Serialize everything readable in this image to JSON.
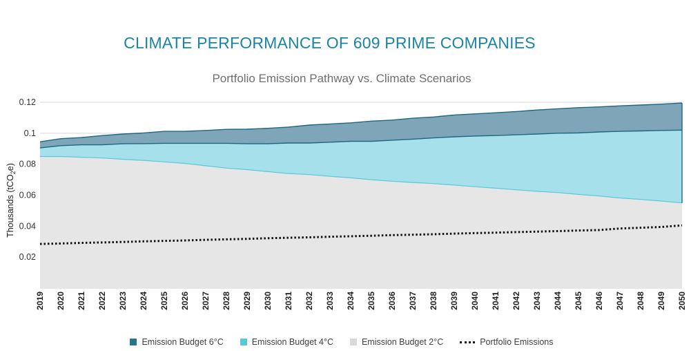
{
  "title": "CLIMATE PERFORMANCE OF 609 PRIME COMPANIES",
  "chart_data": {
    "type": "area",
    "title": "Portfolio Emission Pathway vs. Climate Scenarios",
    "xlabel": "",
    "ylabel": "Thousands (tCO2e)",
    "ylabel_parts": {
      "pre": "Thousands (tCO",
      "sub": "2",
      "post": "e)"
    },
    "ylim": [
      0,
      0.12
    ],
    "yticks": [
      0.02,
      0.04,
      0.06,
      0.08,
      0.1,
      0.12
    ],
    "ytick_labels": [
      "0.02",
      "0.04",
      "0.06",
      "0.08",
      "0.1",
      "0.12"
    ],
    "grid": true,
    "legend_position": "bottom",
    "categories": [
      "2019",
      "2020",
      "2021",
      "2022",
      "2023",
      "2024",
      "2025",
      "2026",
      "2027",
      "2028",
      "2029",
      "2030",
      "2031",
      "2032",
      "2033",
      "2034",
      "2035",
      "2036",
      "2037",
      "2038",
      "2039",
      "2040",
      "2041",
      "2042",
      "2043",
      "2044",
      "2045",
      "2046",
      "2047",
      "2048",
      "2049",
      "2050"
    ],
    "series": [
      {
        "name": "Emission Budget 6°C",
        "type": "area",
        "color": "#2a7391",
        "values": [
          0.0945,
          0.0965,
          0.0972,
          0.0985,
          0.0995,
          0.1002,
          0.1012,
          0.1012,
          0.1018,
          0.1025,
          0.1026,
          0.1032,
          0.104,
          0.1053,
          0.106,
          0.1067,
          0.1078,
          0.1085,
          0.1097,
          0.1105,
          0.1118,
          0.1125,
          0.1132,
          0.114,
          0.115,
          0.1158,
          0.1165,
          0.117,
          0.1177,
          0.1182,
          0.1188,
          0.1195
        ]
      },
      {
        "name": "Emission Budget 4°C",
        "type": "area",
        "color": "#5bc7db",
        "values": [
          0.0905,
          0.092,
          0.0925,
          0.0925,
          0.0932,
          0.0933,
          0.0935,
          0.0935,
          0.0935,
          0.0935,
          0.0932,
          0.0932,
          0.0937,
          0.0937,
          0.0942,
          0.0948,
          0.0948,
          0.0955,
          0.0962,
          0.097,
          0.0977,
          0.0982,
          0.0985,
          0.099,
          0.0995,
          0.1,
          0.1002,
          0.1008,
          0.1012,
          0.1015,
          0.1018,
          0.102
        ]
      },
      {
        "name": "Emission Budget 2°C",
        "type": "area",
        "color": "#d9d9d9",
        "values": [
          0.085,
          0.085,
          0.0845,
          0.084,
          0.0832,
          0.0825,
          0.0815,
          0.0805,
          0.079,
          0.0775,
          0.0765,
          0.0752,
          0.074,
          0.0733,
          0.0722,
          0.0712,
          0.07,
          0.069,
          0.0682,
          0.0675,
          0.0665,
          0.0655,
          0.0645,
          0.0635,
          0.0625,
          0.0617,
          0.0605,
          0.0595,
          0.0582,
          0.0573,
          0.0562,
          0.055
        ]
      },
      {
        "name": "Portfolio Emissions",
        "type": "line",
        "style": "dotted",
        "color": "#111111",
        "values": [
          0.0285,
          0.0288,
          0.0292,
          0.0295,
          0.0298,
          0.0302,
          0.0305,
          0.0308,
          0.0312,
          0.0315,
          0.0318,
          0.0322,
          0.0325,
          0.0328,
          0.0332,
          0.0335,
          0.0338,
          0.0342,
          0.0345,
          0.0348,
          0.0352,
          0.0355,
          0.0358,
          0.0362,
          0.0365,
          0.0368,
          0.0372,
          0.0375,
          0.0385,
          0.039,
          0.0395,
          0.0405
        ]
      }
    ]
  }
}
